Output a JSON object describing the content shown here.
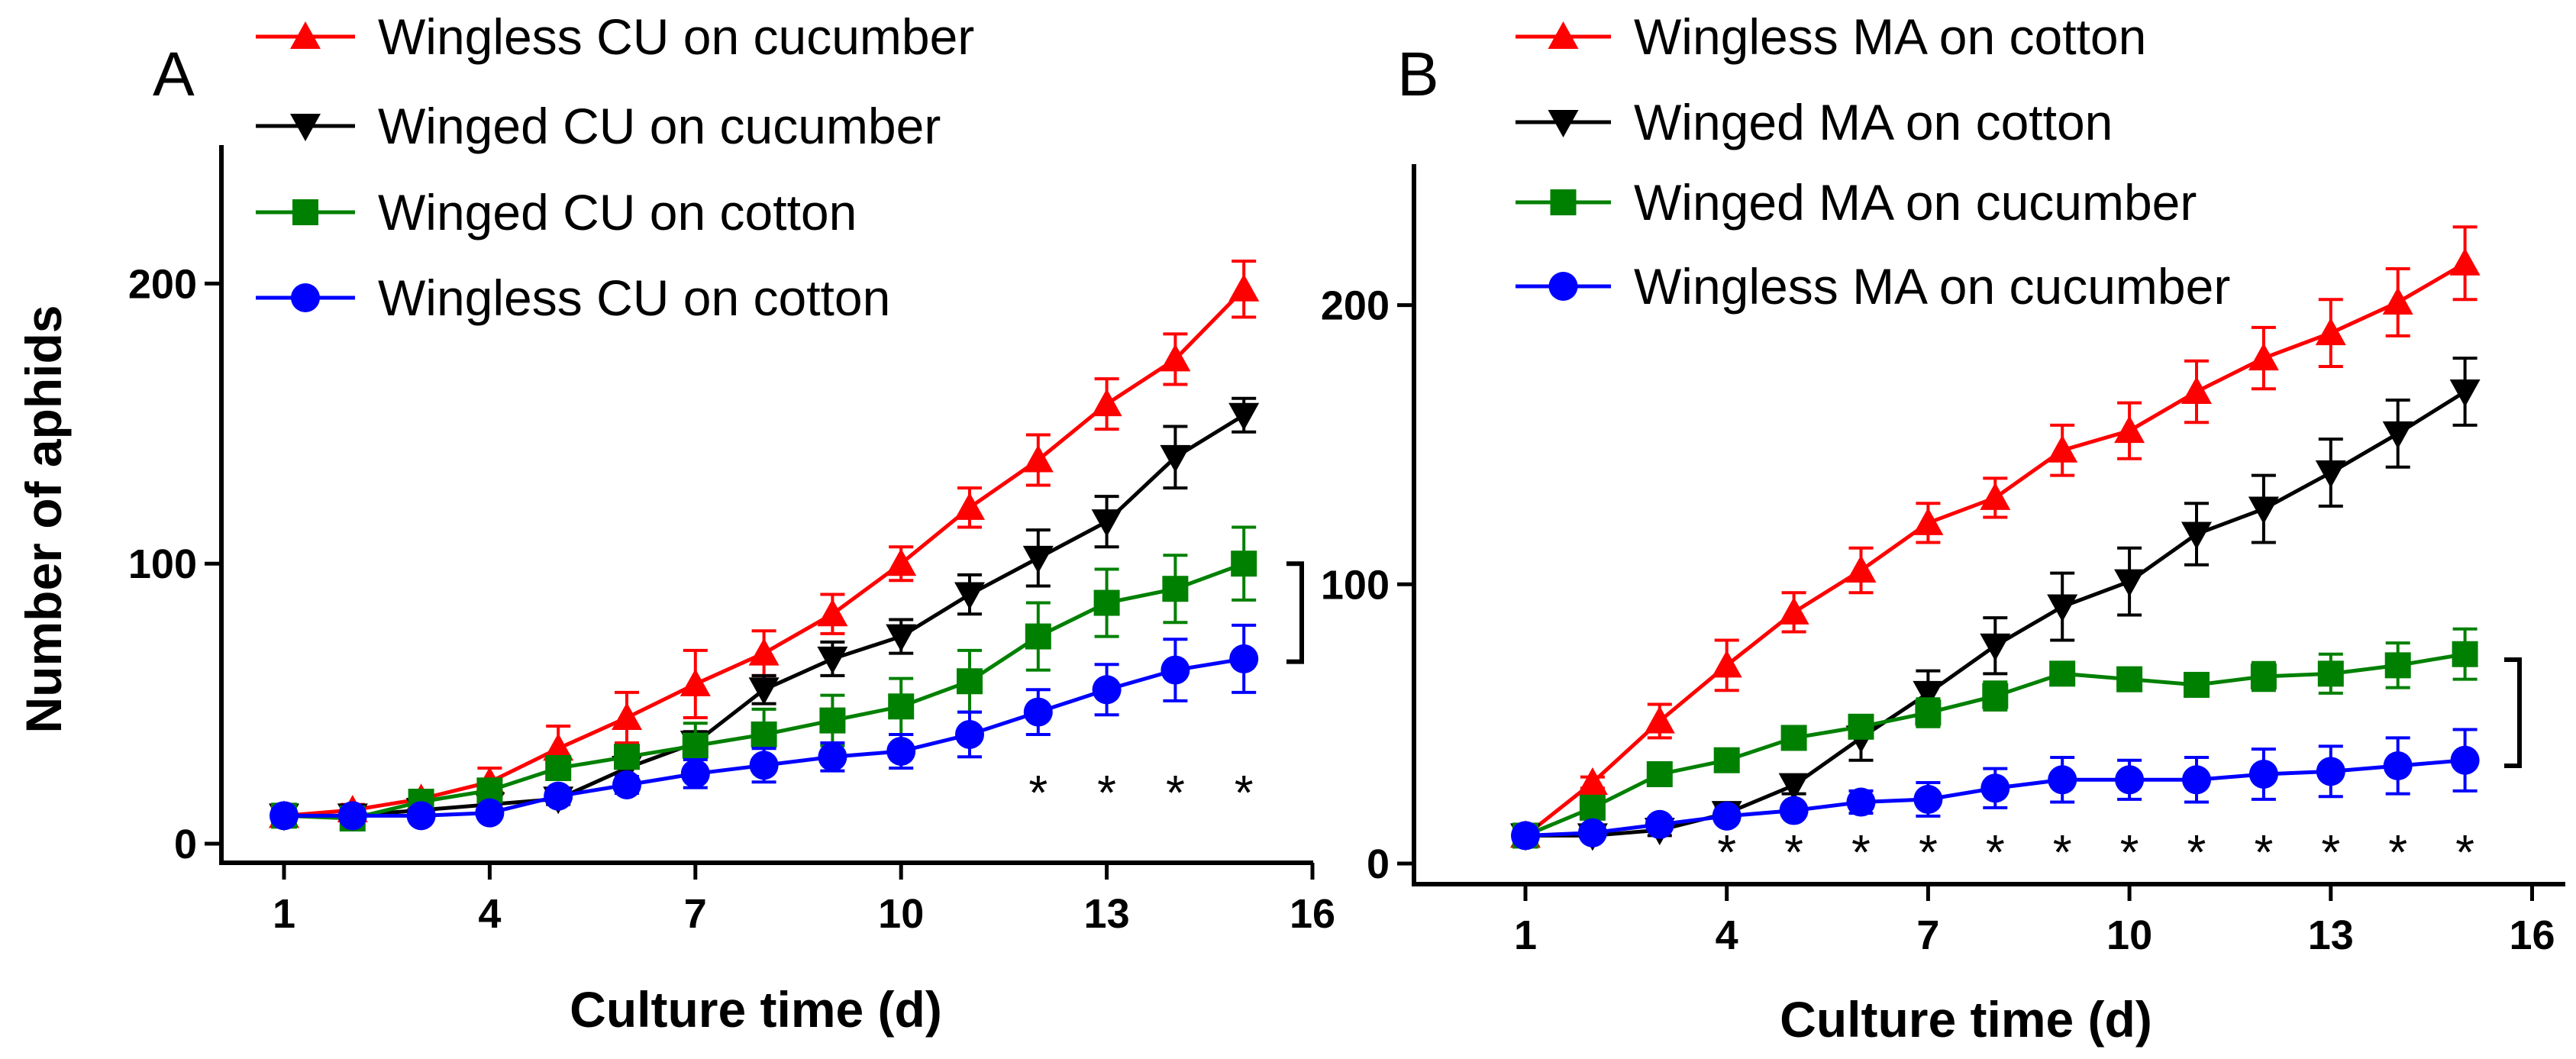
{
  "chart_data": [
    {
      "type": "line",
      "panel": "A",
      "xlabel": "Culture time (d)",
      "ylabel": "Number of aphids",
      "xlim": [
        0,
        16
      ],
      "ylim": [
        0,
        240
      ],
      "xticks": [
        1,
        4,
        7,
        10,
        13,
        16
      ],
      "yticks": [
        0,
        100,
        200
      ],
      "x": [
        1,
        2,
        3,
        4,
        5,
        6,
        7,
        8,
        9,
        10,
        11,
        12,
        13,
        14,
        15
      ],
      "series": [
        {
          "name": "Wingless CU on cucumber",
          "color": "#ff0000",
          "marker": "triangle-up",
          "values": [
            10,
            12,
            16,
            22,
            34,
            45,
            57,
            68,
            82,
            100,
            120,
            137,
            157,
            173,
            198
          ],
          "errors": [
            1,
            2,
            3,
            5,
            8,
            9,
            12,
            8,
            7,
            6,
            7,
            9,
            9,
            9,
            10
          ]
        },
        {
          "name": "Winged CU on cucumber",
          "color": "#000000",
          "marker": "triangle-down",
          "values": [
            10,
            10,
            12,
            14,
            16,
            27,
            36,
            55,
            66,
            74,
            89,
            102,
            115,
            138,
            153
          ],
          "errors": [
            1,
            1,
            2,
            2,
            2,
            3,
            4,
            5,
            6,
            6,
            7,
            10,
            9,
            11,
            6
          ]
        },
        {
          "name": "Winged CU on cotton",
          "color": "#008000",
          "marker": "square",
          "values": [
            10,
            9,
            15,
            19,
            27,
            31,
            35,
            39,
            44,
            49,
            58,
            74,
            86,
            91,
            100
          ],
          "errors": [
            1,
            1,
            2,
            3,
            3,
            4,
            8,
            9,
            9,
            10,
            11,
            12,
            12,
            12,
            13
          ]
        },
        {
          "name": "Wingless CU on cotton",
          "color": "#0000ff",
          "marker": "circle",
          "values": [
            10,
            10,
            10,
            11,
            17,
            21,
            25,
            28,
            31,
            33,
            39,
            47,
            55,
            62,
            66
          ],
          "errors": [
            1,
            1,
            1,
            2,
            2,
            3,
            5,
            6,
            5,
            6,
            8,
            8,
            9,
            11,
            12
          ]
        }
      ],
      "significance_label": "*",
      "significance_x": [
        12,
        13,
        14,
        15
      ]
    },
    {
      "type": "line",
      "panel": "B",
      "xlabel": "Culture time (d)",
      "ylabel": "",
      "xlim": [
        0,
        16
      ],
      "ylim": [
        0,
        250
      ],
      "xticks": [
        1,
        4,
        7,
        10,
        13,
        16
      ],
      "yticks": [
        0,
        100,
        200
      ],
      "x": [
        1,
        2,
        3,
        4,
        5,
        6,
        7,
        8,
        9,
        10,
        11,
        12,
        13,
        14,
        15
      ],
      "series": [
        {
          "name": "Wingless MA on cotton",
          "color": "#ff0000",
          "marker": "triangle-up",
          "values": [
            10,
            29,
            51,
            71,
            90,
            105,
            122,
            131,
            148,
            155,
            169,
            181,
            190,
            201,
            215
          ],
          "errors": [
            1,
            2,
            6,
            9,
            7,
            8,
            7,
            7,
            9,
            10,
            11,
            11,
            12,
            12,
            13
          ]
        },
        {
          "name": "Winged MA on cotton",
          "color": "#000000",
          "marker": "triangle-down",
          "values": [
            10,
            10,
            12,
            18,
            28,
            45,
            61,
            78,
            92,
            101,
            118,
            127,
            140,
            154,
            169
          ],
          "errors": [
            1,
            1,
            2,
            2,
            3,
            8,
            8,
            10,
            12,
            12,
            11,
            12,
            12,
            12,
            12
          ]
        },
        {
          "name": "Winged MA on cucumber",
          "color": "#008000",
          "marker": "square",
          "values": [
            10,
            20,
            32,
            37,
            45,
            49,
            54,
            60,
            68,
            66,
            64,
            67,
            68,
            71,
            75
          ],
          "errors": [
            1,
            2,
            3,
            2,
            3,
            4,
            5,
            5,
            4,
            4,
            4,
            5,
            7,
            8,
            9
          ]
        },
        {
          "name": "Wingless MA on cucumber",
          "color": "#0000ff",
          "marker": "circle",
          "values": [
            10,
            11,
            14,
            17,
            19,
            22,
            23,
            27,
            30,
            30,
            30,
            32,
            33,
            35,
            37
          ],
          "errors": [
            1,
            1,
            1,
            2,
            2,
            4,
            6,
            7,
            8,
            7,
            8,
            9,
            9,
            10,
            11
          ]
        }
      ],
      "significance_label": "*",
      "significance_x": [
        4,
        5,
        6,
        7,
        8,
        9,
        10,
        11,
        12,
        13,
        14,
        15
      ]
    }
  ]
}
